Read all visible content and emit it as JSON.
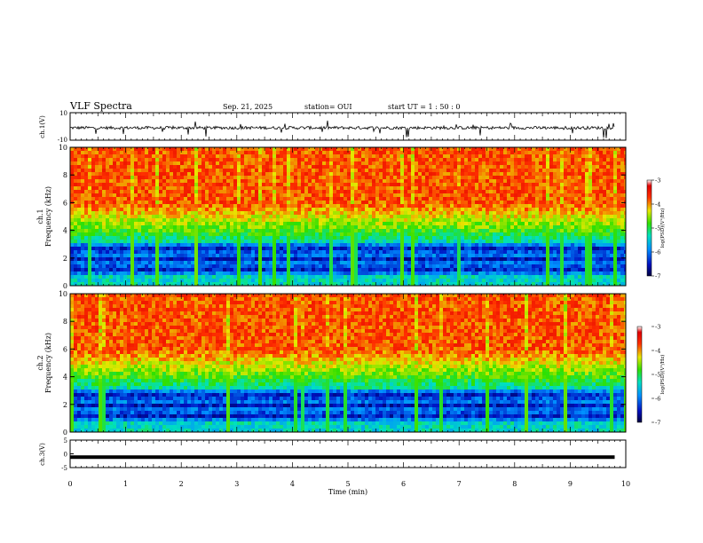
{
  "header": {
    "title": "VLF Spectra",
    "date": "Sep. 21, 2025",
    "station": "station= OUI",
    "start": "start  UT =   1 : 50 : 0"
  },
  "chart_data": [
    {
      "type": "line",
      "name": "ch1-waveform",
      "ylabel": "ch.1(V)",
      "ylim": [
        -10,
        10
      ],
      "yticks": [
        "10",
        "-10"
      ],
      "baseline": -1,
      "xlim": [
        0,
        10
      ],
      "data_extent_min": 9.8
    },
    {
      "type": "heatmap",
      "name": "ch1-spectrogram",
      "ylabel_line1": "ch.1",
      "ylabel_line2": "Frequency (kHz)",
      "ylim": [
        0,
        10
      ],
      "yticks": [
        "0",
        "2",
        "4",
        "6",
        "8",
        "10"
      ],
      "colorbar": {
        "label": "log(PSD)(V²/Hz)",
        "range": [
          -7,
          -3
        ],
        "ticks": [
          "-3",
          "-4",
          "-5",
          "-6",
          "-7"
        ]
      }
    },
    {
      "type": "heatmap",
      "name": "ch2-spectrogram",
      "ylabel_line1": "ch.2",
      "ylabel_line2": "Frequency (kHz)",
      "ylim": [
        0,
        10
      ],
      "yticks": [
        "0",
        "2",
        "4",
        "6",
        "8",
        "10"
      ],
      "colorbar": {
        "label": "log(PSD)(V²/Hz)",
        "range": [
          -7,
          -3
        ],
        "ticks": [
          "-3",
          "-4",
          "-5",
          "-6",
          "-7"
        ]
      }
    },
    {
      "type": "line",
      "name": "ch3-waveform",
      "ylabel": "ch.3(V)",
      "ylim": [
        -5,
        5
      ],
      "yticks": [
        "5",
        "0",
        "-5"
      ],
      "value": -1.2
    }
  ],
  "xaxis": {
    "label": "Time (min)",
    "range": [
      0,
      10
    ],
    "ticks": [
      "0",
      "1",
      "2",
      "3",
      "4",
      "5",
      "6",
      "7",
      "8",
      "9",
      "10"
    ]
  }
}
